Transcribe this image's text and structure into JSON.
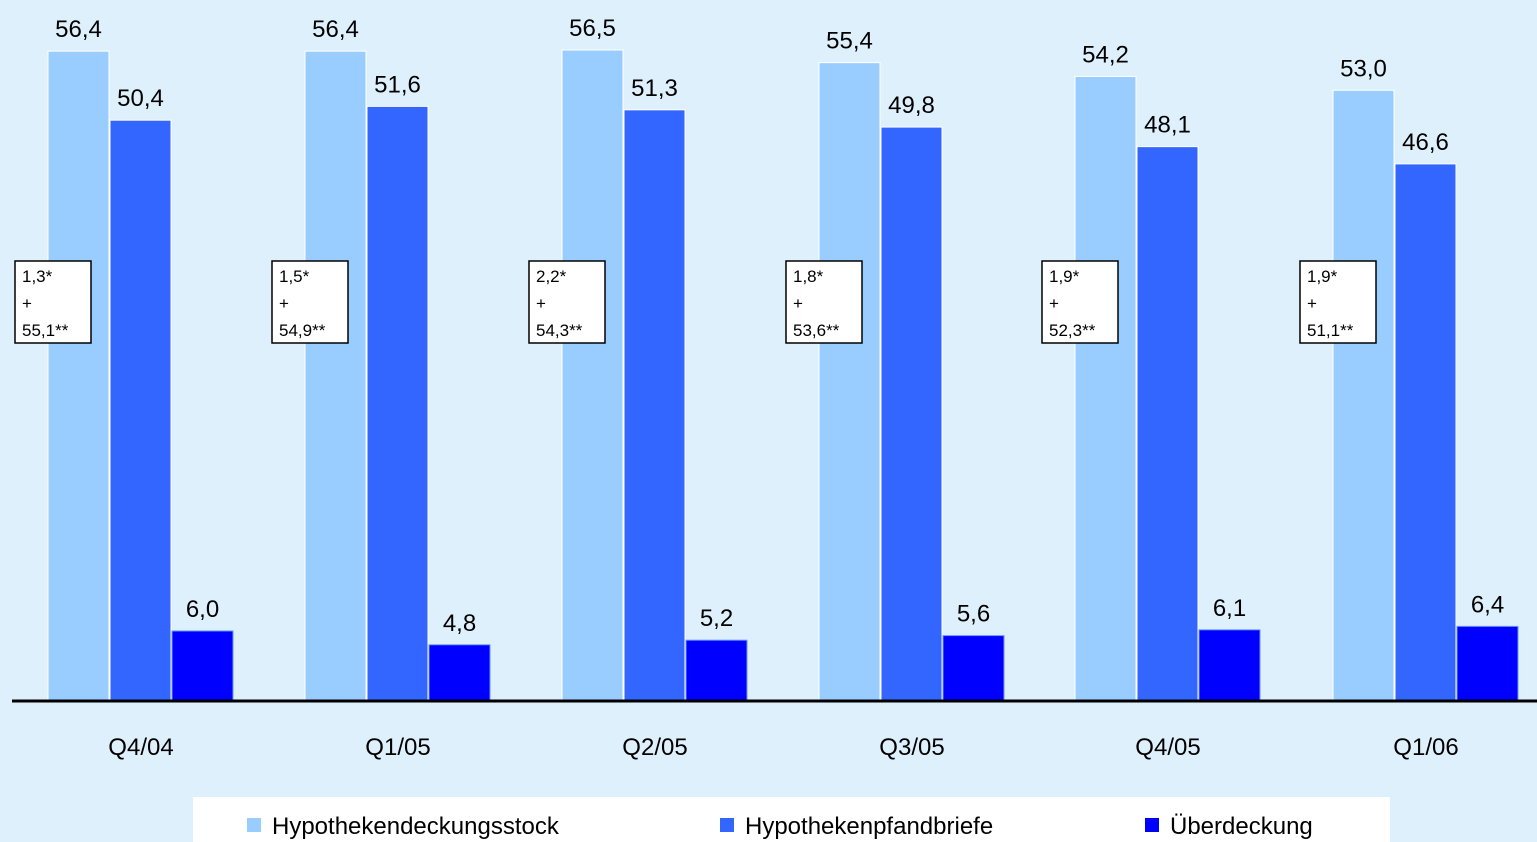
{
  "chart_data": {
    "type": "bar",
    "title": "",
    "xlabel": "",
    "ylabel": "",
    "ylim": [
      0,
      56.5
    ],
    "grid": false,
    "legend_position": "bottom",
    "categories": [
      "Q4/04",
      "Q1/05",
      "Q2/05",
      "Q3/05",
      "Q4/05",
      "Q1/06"
    ],
    "series": [
      {
        "name": "Hypothekendeckungsstock",
        "color": "#99ccff",
        "values": [
          56.4,
          56.4,
          56.5,
          55.4,
          54.2,
          53.0
        ],
        "labels": [
          "56,4",
          "56,4",
          "56,5",
          "55,4",
          "54,2",
          "53,0"
        ]
      },
      {
        "name": "Hypothekenpfandbriefe",
        "color": "#3366ff",
        "values": [
          50.4,
          51.6,
          51.3,
          49.8,
          48.1,
          46.6
        ],
        "labels": [
          "50,4",
          "51,6",
          "51,3",
          "49,8",
          "48,1",
          "46,6"
        ]
      },
      {
        "name": "Überdeckung",
        "color": "#0000ff",
        "values": [
          6.0,
          4.8,
          5.2,
          5.6,
          6.1,
          6.4
        ],
        "labels": [
          "6,0",
          "4,8",
          "5,2",
          "5,6",
          "6,1",
          "6,4"
        ]
      }
    ],
    "annotations": [
      [
        "1,3*",
        "+",
        "55,1**"
      ],
      [
        "1,5*",
        "+",
        "54,9**"
      ],
      [
        "2,2*",
        "+",
        "54,3**"
      ],
      [
        "1,8*",
        "+",
        "53,6**"
      ],
      [
        "1,9*",
        "+",
        "52,3**"
      ],
      [
        "1,9*",
        "+",
        "51,1**"
      ]
    ]
  }
}
